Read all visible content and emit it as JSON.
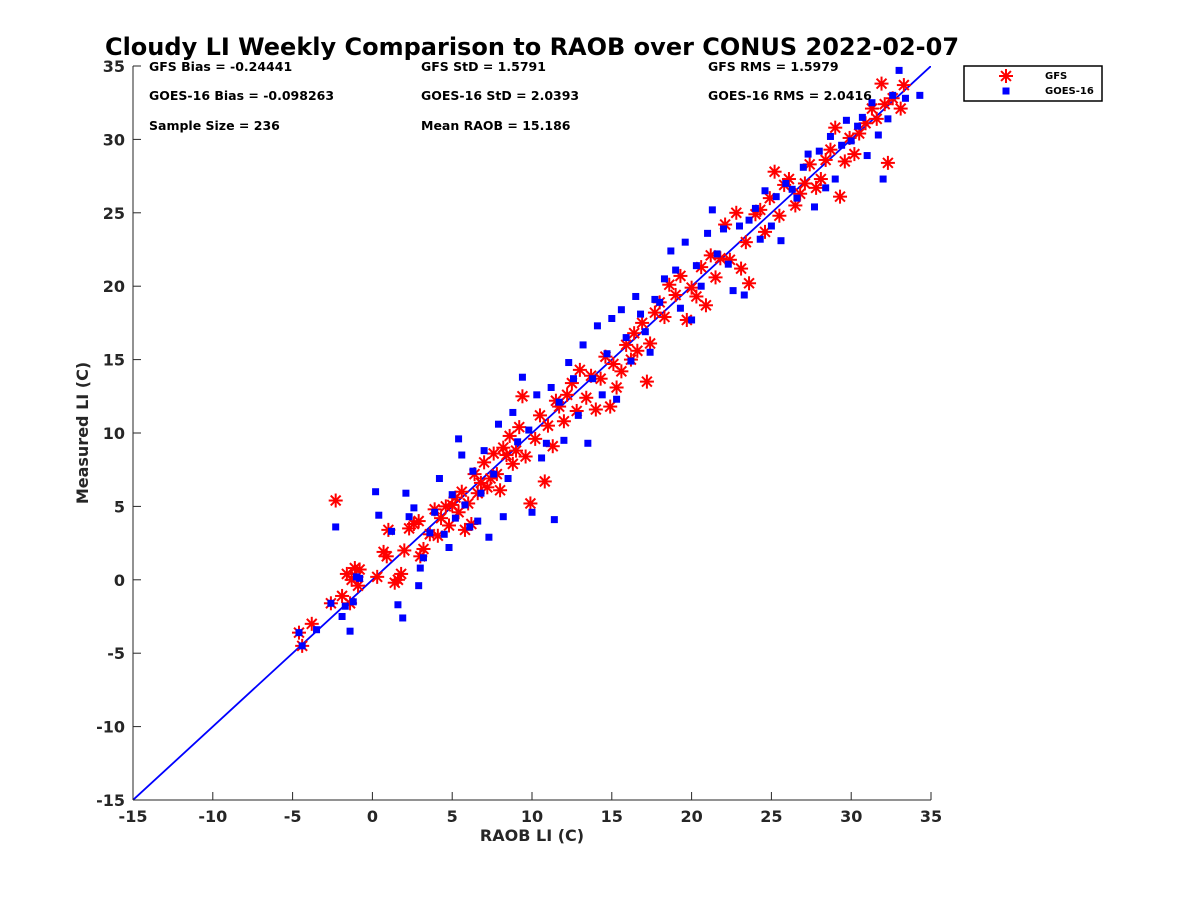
{
  "chart_data": {
    "type": "scatter",
    "title": "Cloudy LI Weekly Comparison to RAOB over CONUS 2022-02-07",
    "xlabel": "RAOB LI (C)",
    "ylabel": "Measured LI (C)",
    "xlim": [
      -15,
      35
    ],
    "ylim": [
      -15,
      35
    ],
    "xticks": [
      "-15",
      "-10",
      "-5",
      "0",
      "5",
      "10",
      "15",
      "20",
      "25",
      "30",
      "35"
    ],
    "yticks": [
      "-15",
      "-10",
      "-5",
      "0",
      "5",
      "10",
      "15",
      "20",
      "25",
      "30",
      "35"
    ],
    "grid": false,
    "legend_position": "outside top-right",
    "reference_line": {
      "label": "1:1",
      "color": "#0000ff",
      "from": [
        -15,
        -15
      ],
      "to": [
        35,
        35
      ]
    },
    "stats": [
      [
        "GFS Bias = -0.24441",
        "GFS StD = 1.5791",
        "GFS RMS = 1.5979"
      ],
      [
        "GOES-16 Bias = -0.098263",
        "GOES-16 StD = 2.0393",
        "GOES-16 RMS = 2.0416"
      ],
      [
        "Sample Size = 236",
        "Mean RAOB = 15.186"
      ]
    ],
    "series": [
      {
        "name": "GFS",
        "marker": "asterisk",
        "color": "#ff0000",
        "x": [
          -4.6,
          -4.4,
          -3.8,
          -2.6,
          -2.3,
          -1.9,
          -1.6,
          -1.4,
          -1.3,
          -1.1,
          -1.0,
          -0.9,
          -0.8,
          0.3,
          0.7,
          0.9,
          1.0,
          1.4,
          1.6,
          1.8,
          2.0,
          2.3,
          2.6,
          2.9,
          3.0,
          3.2,
          3.6,
          3.9,
          4.1,
          4.3,
          4.6,
          4.8,
          5.0,
          5.2,
          5.4,
          5.6,
          5.8,
          6.0,
          6.2,
          6.4,
          6.6,
          6.8,
          7.0,
          7.2,
          7.4,
          7.6,
          7.8,
          8.0,
          8.2,
          8.4,
          8.6,
          8.8,
          9.0,
          9.2,
          9.4,
          9.6,
          9.9,
          10.2,
          10.5,
          10.8,
          11.0,
          11.3,
          11.5,
          11.7,
          12.0,
          12.2,
          12.5,
          12.8,
          13.0,
          13.4,
          13.7,
          14.0,
          14.3,
          14.6,
          14.9,
          15.1,
          15.3,
          15.6,
          15.9,
          16.2,
          16.4,
          16.6,
          16.9,
          17.2,
          17.4,
          17.7,
          18.0,
          18.3,
          18.6,
          19.0,
          19.3,
          19.7,
          20.0,
          20.3,
          20.6,
          20.9,
          21.2,
          21.5,
          21.8,
          22.1,
          22.4,
          22.8,
          23.1,
          23.4,
          23.6,
          24.0,
          24.3,
          24.6,
          24.9,
          25.2,
          25.5,
          25.8,
          26.1,
          26.5,
          26.8,
          27.1,
          27.4,
          27.8,
          28.1,
          28.4,
          28.7,
          29.0,
          29.3,
          29.6,
          29.9,
          30.2,
          30.5,
          30.9,
          31.3,
          31.6,
          31.9,
          32.1,
          32.3,
          32.6,
          33.1,
          33.3
        ],
        "y": [
          -3.6,
          -4.5,
          -3.0,
          -1.6,
          5.4,
          -1.1,
          0.4,
          -1.6,
          0.0,
          0.8,
          0.2,
          -0.4,
          0.7,
          0.2,
          1.9,
          1.6,
          3.4,
          -0.2,
          0.0,
          0.4,
          2.0,
          3.5,
          3.8,
          4.0,
          1.6,
          2.1,
          3.1,
          4.8,
          3.0,
          4.2,
          5.0,
          3.7,
          5.1,
          5.6,
          4.6,
          6.0,
          3.4,
          5.2,
          3.8,
          7.2,
          5.9,
          6.6,
          8.0,
          6.3,
          6.9,
          8.6,
          7.2,
          6.1,
          9.0,
          8.5,
          9.8,
          7.9,
          8.8,
          10.4,
          12.5,
          8.4,
          5.2,
          9.6,
          11.2,
          6.7,
          10.5,
          9.1,
          12.2,
          11.8,
          10.8,
          12.6,
          13.4,
          11.5,
          14.3,
          12.4,
          13.9,
          11.6,
          13.7,
          15.2,
          11.8,
          14.7,
          13.1,
          14.2,
          16.0,
          15.0,
          16.8,
          15.6,
          17.5,
          13.5,
          16.1,
          18.2,
          18.9,
          17.9,
          20.1,
          19.4,
          20.7,
          17.7,
          19.9,
          19.3,
          21.3,
          18.7,
          22.1,
          20.6,
          21.9,
          24.2,
          21.8,
          25.0,
          21.2,
          23.0,
          20.2,
          24.9,
          25.2,
          23.7,
          26.0,
          27.8,
          24.8,
          26.9,
          27.3,
          25.5,
          26.3,
          27.0,
          28.3,
          26.7,
          27.3,
          28.6,
          29.3,
          30.8,
          26.1,
          28.5,
          30.1,
          29.0,
          30.4,
          31.1,
          32.1,
          31.4,
          33.8,
          32.4,
          28.4,
          32.8,
          32.1,
          33.7
        ]
      },
      {
        "name": "GOES-16",
        "marker": "square",
        "color": "#0000ff",
        "x": [
          -4.6,
          -4.4,
          -3.5,
          -2.6,
          -2.3,
          -1.9,
          -1.7,
          -1.4,
          -1.2,
          -1.0,
          -0.8,
          0.2,
          0.4,
          1.2,
          1.6,
          1.9,
          2.1,
          2.3,
          2.6,
          2.9,
          3.0,
          3.2,
          3.6,
          3.9,
          4.2,
          4.5,
          4.8,
          5.0,
          5.2,
          5.4,
          5.6,
          5.8,
          6.1,
          6.3,
          6.6,
          6.8,
          7.0,
          7.3,
          7.6,
          7.9,
          8.2,
          8.5,
          8.8,
          9.1,
          9.4,
          9.8,
          10.0,
          10.3,
          10.6,
          10.9,
          11.2,
          11.4,
          11.7,
          12.0,
          12.3,
          12.6,
          12.9,
          13.2,
          13.5,
          13.8,
          14.1,
          14.4,
          14.7,
          15.0,
          15.3,
          15.6,
          15.9,
          16.2,
          16.5,
          16.8,
          17.1,
          17.4,
          17.7,
          18.0,
          18.3,
          18.7,
          19.0,
          19.3,
          19.6,
          20.0,
          20.3,
          20.6,
          21.0,
          21.3,
          21.6,
          22.0,
          22.3,
          22.6,
          23.0,
          23.3,
          23.6,
          24.0,
          24.3,
          24.6,
          25.0,
          25.3,
          25.6,
          25.9,
          26.3,
          26.6,
          27.0,
          27.3,
          27.7,
          28.0,
          28.4,
          28.7,
          29.0,
          29.4,
          29.7,
          30.0,
          30.4,
          30.7,
          31.0,
          31.3,
          31.7,
          32.0,
          32.3,
          32.6,
          33.0,
          33.4,
          34.3
        ],
        "y": [
          -3.6,
          -4.5,
          -3.4,
          -1.6,
          3.6,
          -2.5,
          -1.8,
          -3.5,
          -1.5,
          0.2,
          0.1,
          6.0,
          4.4,
          3.3,
          -1.7,
          -2.6,
          5.9,
          4.3,
          4.9,
          -0.4,
          0.8,
          1.5,
          3.2,
          4.6,
          6.9,
          3.1,
          2.2,
          5.8,
          4.2,
          9.6,
          8.5,
          5.1,
          3.6,
          7.4,
          4.0,
          5.9,
          8.8,
          2.9,
          7.2,
          10.6,
          4.3,
          6.9,
          11.4,
          9.4,
          13.8,
          10.2,
          4.6,
          12.6,
          8.3,
          9.3,
          13.1,
          4.1,
          12.1,
          9.5,
          14.8,
          13.7,
          11.2,
          16.0,
          9.3,
          13.7,
          17.3,
          12.6,
          15.4,
          17.8,
          12.3,
          18.4,
          16.5,
          14.9,
          19.3,
          18.1,
          16.9,
          15.5,
          19.1,
          18.9,
          20.5,
          22.4,
          21.1,
          18.5,
          23.0,
          17.7,
          21.4,
          20.0,
          23.6,
          25.2,
          22.2,
          23.9,
          21.5,
          19.7,
          24.1,
          19.4,
          24.5,
          25.3,
          23.2,
          26.5,
          24.1,
          26.1,
          23.1,
          27.0,
          26.6,
          26.0,
          28.1,
          29.0,
          25.4,
          29.2,
          26.7,
          30.2,
          27.3,
          29.6,
          31.3,
          29.9,
          30.9,
          31.5,
          28.9,
          32.5,
          30.3,
          27.3,
          31.4,
          33.0,
          34.7,
          32.8,
          33.0
        ]
      }
    ]
  }
}
